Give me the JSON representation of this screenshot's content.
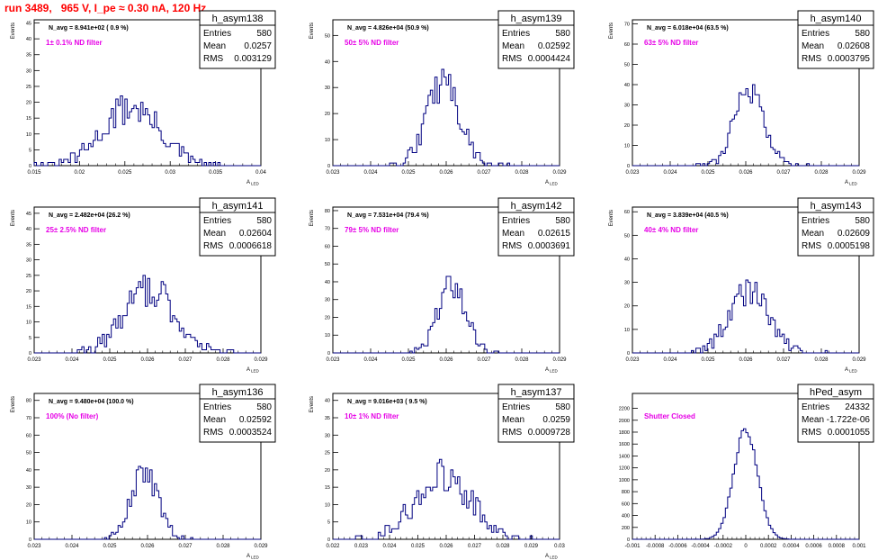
{
  "header": {
    "run_label": "run 3489,   965 V, I_pe ≈ 0.30 nA, 120 Hz"
  },
  "colors": {
    "histogram_line": "#000080",
    "filter_label": "#e600e6",
    "title_text": "#ff0000",
    "axes": "#000000"
  },
  "chart_data": [
    {
      "type": "bar",
      "name": "h_asym138",
      "navg": "N_avg = 8.941e+02 ( 0.9 %)",
      "filter": "1± 0.1% ND filter",
      "stats": [
        [
          "Entries",
          "580"
        ],
        [
          "Mean",
          "0.0257"
        ],
        [
          "RMS",
          "0.003129"
        ]
      ],
      "ylabel": "Events",
      "xlabel": "A",
      "xlabel_sub": "LED",
      "xlim": [
        0.015,
        0.04
      ],
      "ylim": [
        0,
        46
      ],
      "xticks": [
        0.015,
        0.02,
        0.025,
        0.03,
        0.035,
        0.04
      ],
      "xtick_labels": [
        "0.015",
        "0.02",
        "0.025",
        "0.03",
        "0.035",
        "0.04"
      ],
      "yticks": [
        0,
        5,
        10,
        15,
        20,
        25,
        30,
        35,
        40,
        45
      ],
      "mean": 0.0257,
      "rms": 0.003129,
      "entries": 580
    },
    {
      "type": "bar",
      "name": "h_asym139",
      "navg": "N_avg = 4.826e+04 (50.9 %)",
      "filter": "50± 5% ND filter",
      "stats": [
        [
          "Entries",
          "580"
        ],
        [
          "Mean",
          "0.02592"
        ],
        [
          "RMS",
          "0.0004424"
        ]
      ],
      "ylabel": "Events",
      "xlabel": "A",
      "xlabel_sub": "LED",
      "xlim": [
        0.023,
        0.029
      ],
      "ylim": [
        0,
        56
      ],
      "xticks": [
        0.023,
        0.024,
        0.025,
        0.026,
        0.027,
        0.028,
        0.029
      ],
      "xtick_labels": [
        "0.023",
        "0.024",
        "0.025",
        "0.026",
        "0.027",
        "0.028",
        "0.029"
      ],
      "yticks": [
        0,
        10,
        20,
        30,
        40,
        50
      ],
      "mean": 0.02592,
      "rms": 0.0004424,
      "entries": 580
    },
    {
      "type": "bar",
      "name": "h_asym140",
      "navg": "N_avg = 6.018e+04 (63.5 %)",
      "filter": "63± 5% ND filter",
      "stats": [
        [
          "Entries",
          "580"
        ],
        [
          "Mean",
          "0.02608"
        ],
        [
          "RMS",
          "0.0003795"
        ]
      ],
      "ylabel": "Events",
      "xlabel": "A",
      "xlabel_sub": "LED",
      "xlim": [
        0.023,
        0.029
      ],
      "ylim": [
        0,
        72
      ],
      "xticks": [
        0.023,
        0.024,
        0.025,
        0.026,
        0.027,
        0.028,
        0.029
      ],
      "xtick_labels": [
        "0.023",
        "0.024",
        "0.025",
        "0.026",
        "0.027",
        "0.028",
        "0.029"
      ],
      "yticks": [
        0,
        10,
        20,
        30,
        40,
        50,
        60,
        70
      ],
      "mean": 0.02608,
      "rms": 0.0003795,
      "entries": 580
    },
    {
      "type": "bar",
      "name": "h_asym141",
      "navg": "N_avg = 2.482e+04 (26.2 %)",
      "filter": "25± 2.5% ND filter",
      "stats": [
        [
          "Entries",
          "580"
        ],
        [
          "Mean",
          "0.02604"
        ],
        [
          "RMS",
          "0.0006618"
        ]
      ],
      "ylabel": "Events",
      "xlabel": "A",
      "xlabel_sub": "LED",
      "xlim": [
        0.023,
        0.029
      ],
      "ylim": [
        0,
        47
      ],
      "xticks": [
        0.023,
        0.024,
        0.025,
        0.026,
        0.027,
        0.028,
        0.029
      ],
      "xtick_labels": [
        "0.023",
        "0.024",
        "0.025",
        "0.026",
        "0.027",
        "0.028",
        "0.029"
      ],
      "yticks": [
        0,
        5,
        10,
        15,
        20,
        25,
        30,
        35,
        40,
        45
      ],
      "mean": 0.02604,
      "rms": 0.0006618,
      "entries": 580
    },
    {
      "type": "bar",
      "name": "h_asym142",
      "navg": "N_avg = 7.531e+04 (79.4 %)",
      "filter": "79± 5% ND filter",
      "stats": [
        [
          "Entries",
          "580"
        ],
        [
          "Mean",
          "0.02615"
        ],
        [
          "RMS",
          "0.0003691"
        ]
      ],
      "ylabel": "Events",
      "xlabel": "A",
      "xlabel_sub": "LED",
      "xlim": [
        0.023,
        0.029
      ],
      "ylim": [
        0,
        82
      ],
      "xticks": [
        0.023,
        0.024,
        0.025,
        0.026,
        0.027,
        0.028,
        0.029
      ],
      "xtick_labels": [
        "0.023",
        "0.024",
        "0.025",
        "0.026",
        "0.027",
        "0.028",
        "0.029"
      ],
      "yticks": [
        0,
        10,
        20,
        30,
        40,
        50,
        60,
        70,
        80
      ],
      "mean": 0.02615,
      "rms": 0.0003691,
      "entries": 580
    },
    {
      "type": "bar",
      "name": "h_asym143",
      "navg": "N_avg = 3.839e+04 (40.5 %)",
      "filter": "40± 4% ND filter",
      "stats": [
        [
          "Entries",
          "580"
        ],
        [
          "Mean",
          "0.02609"
        ],
        [
          "RMS",
          "0.0005198"
        ]
      ],
      "ylabel": "Events",
      "xlabel": "A",
      "xlabel_sub": "LED",
      "xlim": [
        0.023,
        0.029
      ],
      "ylim": [
        0,
        62
      ],
      "xticks": [
        0.023,
        0.024,
        0.025,
        0.026,
        0.027,
        0.028,
        0.029
      ],
      "xtick_labels": [
        "0.023",
        "0.024",
        "0.025",
        "0.026",
        "0.027",
        "0.028",
        "0.029"
      ],
      "yticks": [
        0,
        10,
        20,
        30,
        40,
        50,
        60
      ],
      "mean": 0.02609,
      "rms": 0.0005198,
      "entries": 580
    },
    {
      "type": "bar",
      "name": "h_asym136",
      "navg": "N_avg = 9.480e+04 (100.0 %)",
      "filter": "100% (No filter)",
      "stats": [
        [
          "Entries",
          "580"
        ],
        [
          "Mean",
          "0.02592"
        ],
        [
          "RMS",
          "0.0003524"
        ]
      ],
      "ylabel": "Events",
      "xlabel": "A",
      "xlabel_sub": "LED",
      "xlim": [
        0.023,
        0.029
      ],
      "ylim": [
        0,
        84
      ],
      "xticks": [
        0.023,
        0.024,
        0.025,
        0.026,
        0.027,
        0.028,
        0.029
      ],
      "xtick_labels": [
        "0.023",
        "0.024",
        "0.025",
        "0.026",
        "0.027",
        "0.028",
        "0.029"
      ],
      "yticks": [
        0,
        10,
        20,
        30,
        40,
        50,
        60,
        70,
        80
      ],
      "mean": 0.02592,
      "rms": 0.0003524,
      "entries": 580
    },
    {
      "type": "bar",
      "name": "h_asym137",
      "navg": "N_avg = 9.016e+03 ( 9.5 %)",
      "filter": "10± 1% ND filter",
      "stats": [
        [
          "Entries",
          "580"
        ],
        [
          "Mean",
          "0.0259"
        ],
        [
          "RMS",
          "0.0009728"
        ]
      ],
      "ylabel": "Events",
      "xlabel": "A",
      "xlabel_sub": "LED",
      "xlim": [
        0.022,
        0.03
      ],
      "ylim": [
        0,
        42
      ],
      "xticks": [
        0.022,
        0.023,
        0.024,
        0.025,
        0.026,
        0.027,
        0.028,
        0.029,
        0.03
      ],
      "xtick_labels": [
        "0.022",
        "0.023",
        "0.024",
        "0.025",
        "0.026",
        "0.027",
        "0.028",
        "0.029",
        "0.03"
      ],
      "yticks": [
        0,
        5,
        10,
        15,
        20,
        25,
        30,
        35,
        40
      ],
      "mean": 0.0259,
      "rms": 0.0009728,
      "entries": 580
    },
    {
      "type": "bar",
      "name": "hPed_asym",
      "navg": "",
      "filter": "Shutter Closed",
      "stats": [
        [
          "Entries",
          "24332"
        ],
        [
          "Mean",
          "-1.722e-06"
        ],
        [
          "RMS",
          "0.0001055"
        ]
      ],
      "ylabel": "",
      "xlabel": "",
      "xlabel_sub": "",
      "xlim": [
        -0.001,
        0.001
      ],
      "ylim": [
        0,
        2450
      ],
      "xticks": [
        -0.001,
        -0.0008,
        -0.0006,
        -0.0004,
        -0.0002,
        0,
        0.0002,
        0.0004,
        0.0006,
        0.0008,
        0.001
      ],
      "xtick_labels": [
        "-0.001",
        "-0.0008",
        "-0.0006",
        "-0.0004",
        "-0.0002",
        "0",
        "0.0002",
        "0.0004",
        "0.0006",
        "0.0008",
        "0.001"
      ],
      "yticks": [
        0,
        200,
        400,
        600,
        800,
        1000,
        1200,
        1400,
        1600,
        1800,
        2000,
        2200
      ],
      "mean": -1.722e-06,
      "rms": 0.0001055,
      "entries": 24332
    }
  ]
}
